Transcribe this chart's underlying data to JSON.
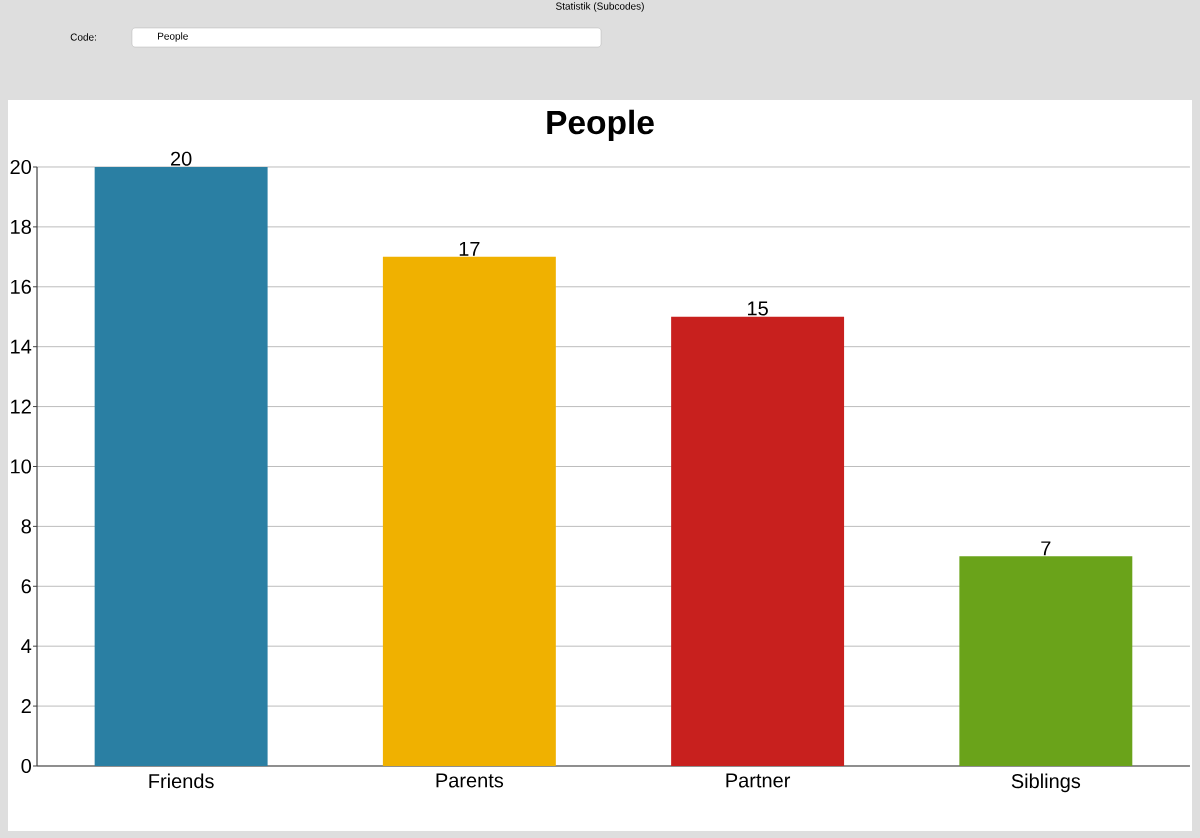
{
  "chart_data": {
    "type": "bar",
    "title": "People",
    "categories": [
      "Friends",
      "Parents",
      "Partner",
      "Siblings"
    ],
    "values": [
      20,
      17,
      15,
      7
    ],
    "colors": [
      "#2a7fa3",
      "#f0b100",
      "#c8201e",
      "#6aa31a"
    ],
    "ylim": [
      0,
      20
    ],
    "yticks": [
      0,
      2,
      4,
      6,
      8,
      10,
      12,
      14,
      16,
      18,
      20
    ],
    "grid": "y",
    "data_labels": true,
    "annotations": [
      "Statistik (Subcodes)",
      "Code:",
      "People"
    ]
  }
}
